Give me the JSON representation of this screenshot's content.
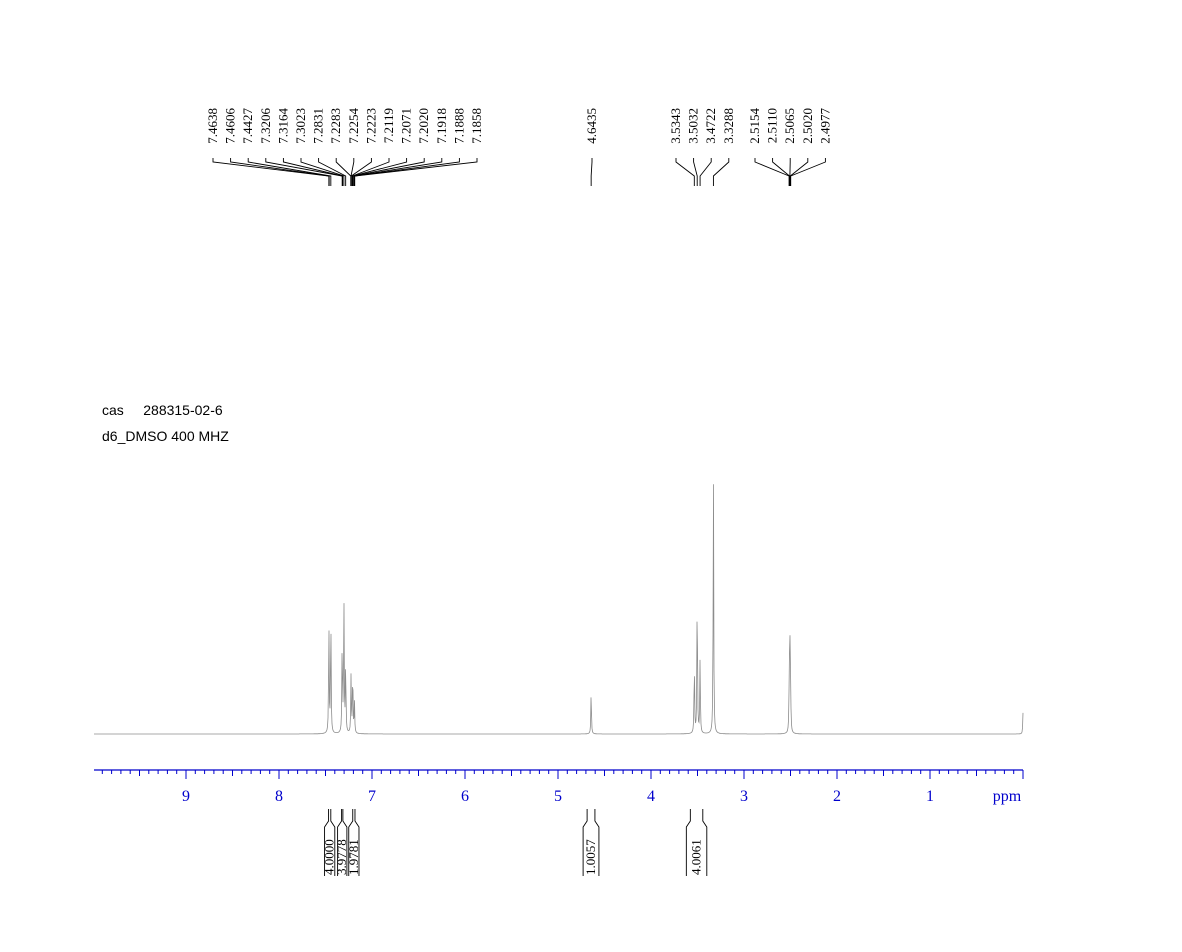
{
  "info": {
    "sample_key": "cas",
    "sample_value": "288315-02-6",
    "solvent_line": "d6_DMSO 400 MHZ"
  },
  "axis": {
    "unit": "ppm",
    "ticks": [
      "9",
      "8",
      "7",
      "6",
      "5",
      "4",
      "3",
      "2",
      "1"
    ]
  },
  "colors": {
    "axis": "#0000cc",
    "spectrum": "#8c8c8c",
    "text": "#000000"
  },
  "chart_data": {
    "type": "line",
    "title": "",
    "xlabel": "ppm",
    "ylabel": "",
    "xlim": [
      10.0,
      0.0
    ],
    "x_reversed": true,
    "grid": false,
    "peak_groups": [
      {
        "labels": [
          "7.4638",
          "7.4606",
          "7.4427",
          "7.3206",
          "7.3164",
          "7.3023",
          "7.2831",
          "7.2283",
          "7.2254",
          "7.2223",
          "7.2119",
          "7.2071",
          "7.2020",
          "7.1918",
          "7.1888",
          "7.1858"
        ]
      },
      {
        "labels": [
          "4.6435"
        ]
      },
      {
        "labels": [
          "3.5343",
          "3.5032",
          "3.4722",
          "3.3288"
        ]
      },
      {
        "labels": [
          "2.5154",
          "2.5110",
          "2.5065",
          "2.5020",
          "2.4977"
        ]
      }
    ],
    "peaks": [
      {
        "ppm": 7.4638,
        "height": 0.44
      },
      {
        "ppm": 7.4427,
        "height": 0.47
      },
      {
        "ppm": 7.3206,
        "height": 0.38
      },
      {
        "ppm": 7.3023,
        "height": 0.53
      },
      {
        "ppm": 7.2831,
        "height": 0.28
      },
      {
        "ppm": 7.2254,
        "height": 0.22
      },
      {
        "ppm": 7.2071,
        "height": 0.25
      },
      {
        "ppm": 7.1888,
        "height": 0.12
      },
      {
        "ppm": 4.6435,
        "height": 0.17
      },
      {
        "ppm": 3.5343,
        "height": 0.28
      },
      {
        "ppm": 3.5032,
        "height": 0.58
      },
      {
        "ppm": 3.4722,
        "height": 0.29
      },
      {
        "ppm": 3.3288,
        "height": 1.0
      },
      {
        "ppm": 2.5154,
        "height": 0.07
      },
      {
        "ppm": 2.511,
        "height": 0.16
      },
      {
        "ppm": 2.5065,
        "height": 0.25
      },
      {
        "ppm": 2.502,
        "height": 0.16
      },
      {
        "ppm": 2.4977,
        "height": 0.07
      },
      {
        "ppm": 0.0,
        "height": 0.08
      }
    ],
    "integrals": [
      {
        "value": "4.0000",
        "from": 7.51,
        "to": 7.4
      },
      {
        "value": "3.9778",
        "from": 7.37,
        "to": 7.27
      },
      {
        "value": "1.9781",
        "from": 7.25,
        "to": 7.14
      },
      {
        "value": "1.0057",
        "from": 4.73,
        "to": 4.56
      },
      {
        "value": "4.0061",
        "from": 3.62,
        "to": 3.4
      }
    ]
  }
}
